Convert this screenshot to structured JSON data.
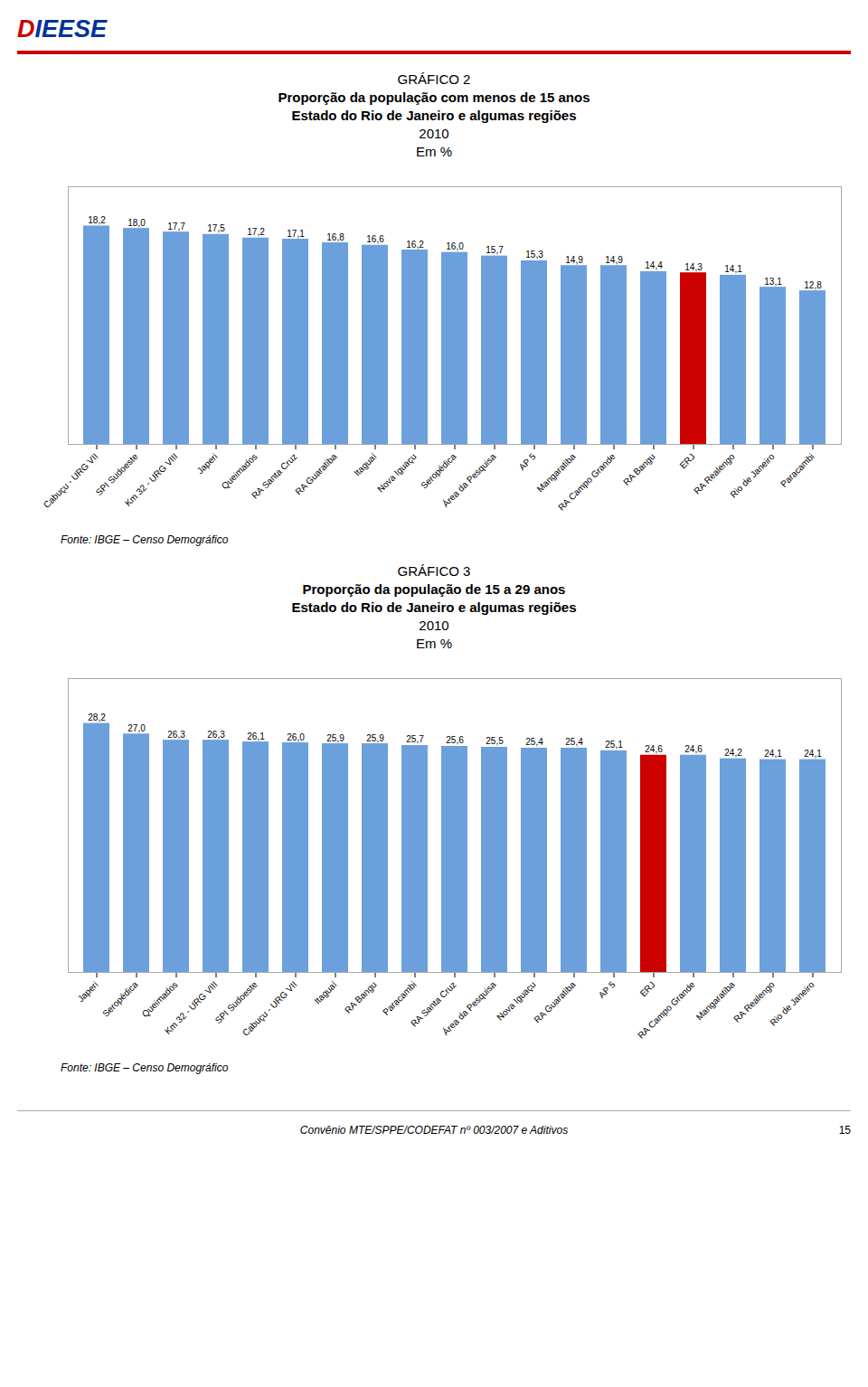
{
  "chart_data": [
    {
      "type": "bar",
      "title": "GRÁFICO 2",
      "subtitle": [
        "Proporção da população com menos de 15 anos",
        "Estado do Rio de Janeiro e algumas regiões",
        "2010",
        "Em %"
      ],
      "categories": [
        "Cabuçu - URG VII",
        "SPI Sudoeste",
        "Km 32 - URG VIII",
        "Japeri",
        "Queimados",
        "RA Santa Cruz",
        "RA Guaratiba",
        "Itaguaí",
        "Nova Iguaçu",
        "Seropédica",
        "Área da Pesquisa",
        "AP 5",
        "Mangaratiba",
        "RA Campo Grande",
        "RA Bangu",
        "ERJ",
        "RA Realengo",
        "Rio de Janeiro",
        "Paracambi"
      ],
      "values": [
        18.2,
        18.0,
        17.7,
        17.5,
        17.2,
        17.1,
        16.8,
        16.6,
        16.2,
        16.0,
        15.7,
        15.3,
        14.9,
        14.9,
        14.4,
        14.3,
        14.1,
        13.1,
        12.8
      ],
      "value_labels": [
        "18,2",
        "18,0",
        "17,7",
        "17,5",
        "17,2",
        "17,1",
        "16,8",
        "16,6",
        "16,2",
        "16,0",
        "15,7",
        "15,3",
        "14,9",
        "14,9",
        "14,4",
        "14,3",
        "14,1",
        "13,1",
        "12,8"
      ],
      "colors": [
        "#6CA0DC",
        "#6CA0DC",
        "#6CA0DC",
        "#6CA0DC",
        "#6CA0DC",
        "#6CA0DC",
        "#6CA0DC",
        "#6CA0DC",
        "#6CA0DC",
        "#6CA0DC",
        "#6CA0DC",
        "#6CA0DC",
        "#6CA0DC",
        "#6CA0DC",
        "#6CA0DC",
        "#CC0000",
        "#6CA0DC",
        "#6CA0DC",
        "#6CA0DC"
      ],
      "ylim": [
        0,
        21.476
      ],
      "data_labels": true,
      "tick_labels": "x",
      "grid": false,
      "annotations": [
        "Fonte: IBGE – Censo Demográfico"
      ]
    },
    {
      "type": "bar",
      "title": "GRÁFICO 3",
      "subtitle": [
        "Proporção da população de 15 a 29 anos",
        "Estado do Rio de Janeiro e algumas regiões",
        "2010",
        "Em %"
      ],
      "categories": [
        "Japeri",
        "Seropédica",
        "Queimados",
        "Km 32 - URG VIII",
        "SPI Sudoeste",
        "Cabuçu - URG VII",
        "Itaguaí",
        "RA Bangu",
        "Paracambi",
        "RA Santa Cruz",
        "Área da Pesquisa",
        "Nova Iguaçu",
        "RA Guaratiba",
        "AP 5",
        "ERJ",
        "RA Campo Grande",
        "Mangaratiba",
        "RA Realengo",
        "Rio de Janeiro"
      ],
      "values": [
        28.2,
        27.0,
        26.3,
        26.3,
        26.1,
        26.0,
        25.9,
        25.9,
        25.7,
        25.6,
        25.5,
        25.4,
        25.4,
        25.1,
        24.6,
        24.6,
        24.2,
        24.1,
        24.1
      ],
      "value_labels": [
        "28,2",
        "27,0",
        "26,3",
        "26,3",
        "26,1",
        "26,0",
        "25,9",
        "25,9",
        "25,7",
        "25,6",
        "25,5",
        "25,4",
        "25,4",
        "25,1",
        "24,6",
        "24,6",
        "24,2",
        "24,1",
        "24,1"
      ],
      "colors": [
        "#6CA0DC",
        "#6CA0DC",
        "#6CA0DC",
        "#6CA0DC",
        "#6CA0DC",
        "#6CA0DC",
        "#6CA0DC",
        "#6CA0DC",
        "#6CA0DC",
        "#6CA0DC",
        "#6CA0DC",
        "#6CA0DC",
        "#6CA0DC",
        "#6CA0DC",
        "#CC0000",
        "#6CA0DC",
        "#6CA0DC",
        "#6CA0DC",
        "#6CA0DC"
      ],
      "ylim": [
        0,
        33.276
      ],
      "data_labels": true,
      "tick_labels": "x",
      "grid": false,
      "annotations": [
        "Fonte: IBGE – Censo Demográfico"
      ]
    }
  ],
  "annotations": [
    "D",
    "IEESE",
    "Convênio MTE/SPPE/CODEFAT nº 003/2007 e Aditivos",
    "15"
  ]
}
